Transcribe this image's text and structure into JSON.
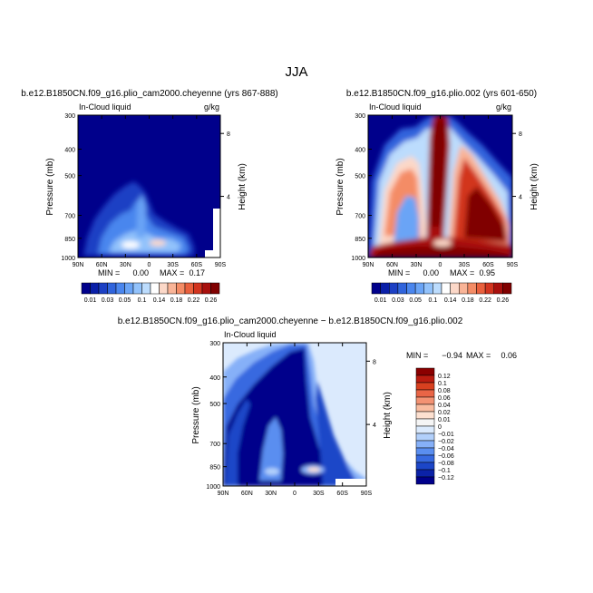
{
  "page": {
    "title": "JJA"
  },
  "colors": {
    "seq_scale": [
      "#00008b",
      "#0a1fa8",
      "#1c40c4",
      "#3064dc",
      "#4a86ee",
      "#6aa4f6",
      "#92c2fb",
      "#bcdcfd",
      "#ffffff",
      "#fcd8c8",
      "#f9b497",
      "#f48c66",
      "#e9603d",
      "#d2341f",
      "#a8100d",
      "#800000"
    ],
    "diff_scale": [
      "#00008b",
      "#0b22a8",
      "#1c46c8",
      "#3769e0",
      "#5a8ef0",
      "#86b0f8",
      "#b2d0fb",
      "#dbeafd",
      "#f5f5f5",
      "#fde0d0",
      "#f9bca0",
      "#f39273",
      "#e96546",
      "#d8401f",
      "#bb1c10",
      "#8b0000"
    ]
  },
  "chart_data": [
    {
      "type": "heatmap",
      "title": "b.e12.B1850CN.f09_g16.plio_cam2000.cheyenne (yrs 867-888)",
      "left_label": "In-Cloud liquid",
      "right_label": "g/kg",
      "ylabel": "Pressure (mb)",
      "ylabel_right": "Height (km)",
      "x_ticks": [
        "90N",
        "60N",
        "30N",
        "0",
        "30S",
        "60S",
        "90S"
      ],
      "y_ticks": [
        "300",
        "400",
        "500",
        "700",
        "850",
        "1000"
      ],
      "y_right_ticks": [
        "8",
        "4"
      ],
      "stats": {
        "min_label": "MIN =",
        "min": "0.00",
        "max_label": "MAX =",
        "max": "0.17"
      },
      "ylim": [
        1000,
        300
      ],
      "xlim": [
        90,
        -90
      ],
      "colorbar": [
        "0.01",
        "0.03",
        "0.05",
        "0.1",
        "0.14",
        "0.18",
        "0.22",
        "0.26"
      ]
    },
    {
      "type": "heatmap",
      "title": "b.e12.B1850CN.f09_g16.plio.002 (yrs 601-650)",
      "left_label": "In-Cloud liquid",
      "right_label": "g/kg",
      "ylabel": "Pressure (mb)",
      "ylabel_right": "Height (km)",
      "x_ticks": [
        "90N",
        "60N",
        "30N",
        "0",
        "30S",
        "60S",
        "90S"
      ],
      "y_ticks": [
        "300",
        "400",
        "500",
        "700",
        "850",
        "1000"
      ],
      "y_right_ticks": [
        "8",
        "4"
      ],
      "stats": {
        "min_label": "MIN =",
        "min": "0.00",
        "max_label": "MAX =",
        "max": "0.95"
      },
      "ylim": [
        1000,
        300
      ],
      "xlim": [
        90,
        -90
      ],
      "colorbar": [
        "0.01",
        "0.03",
        "0.05",
        "0.1",
        "0.14",
        "0.18",
        "0.22",
        "0.26"
      ]
    },
    {
      "type": "heatmap",
      "title": "b.e12.B1850CN.f09_g16.plio_cam2000.cheyenne − b.e12.B1850CN.f09_g16.plio.002",
      "left_label": "In-Cloud liquid",
      "ylabel": "Pressure (mb)",
      "ylabel_right": "Height (km)",
      "x_ticks": [
        "90N",
        "60N",
        "30N",
        "0",
        "30S",
        "60S",
        "90S"
      ],
      "y_ticks": [
        "300",
        "400",
        "500",
        "700",
        "850",
        "1000"
      ],
      "y_right_ticks": [
        "8",
        "4"
      ],
      "stats": {
        "min_label": "MIN =",
        "min": "−0.94",
        "max_label": "MAX =",
        "max": "0.06"
      },
      "ylim": [
        1000,
        300
      ],
      "xlim": [
        90,
        -90
      ],
      "colorbar": [
        "0.12",
        "0.1",
        "0.08",
        "0.06",
        "0.04",
        "0.02",
        "0.01",
        "0",
        "−0.01",
        "−0.02",
        "−0.04",
        "−0.06",
        "−0.08",
        "−0.1",
        "−0.12"
      ]
    }
  ]
}
